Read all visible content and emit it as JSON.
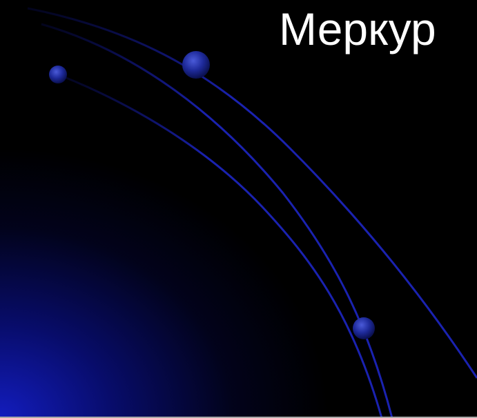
{
  "slide": {
    "title": "Меркур"
  },
  "colors": {
    "background": "#000000",
    "glow": "#1424c8",
    "arc": "#1a22b0",
    "planet": "#1e2a9a",
    "title_text": "#ffffff"
  },
  "decorations": {
    "arcs": "orbit-arc",
    "planets": "planet-sphere"
  }
}
